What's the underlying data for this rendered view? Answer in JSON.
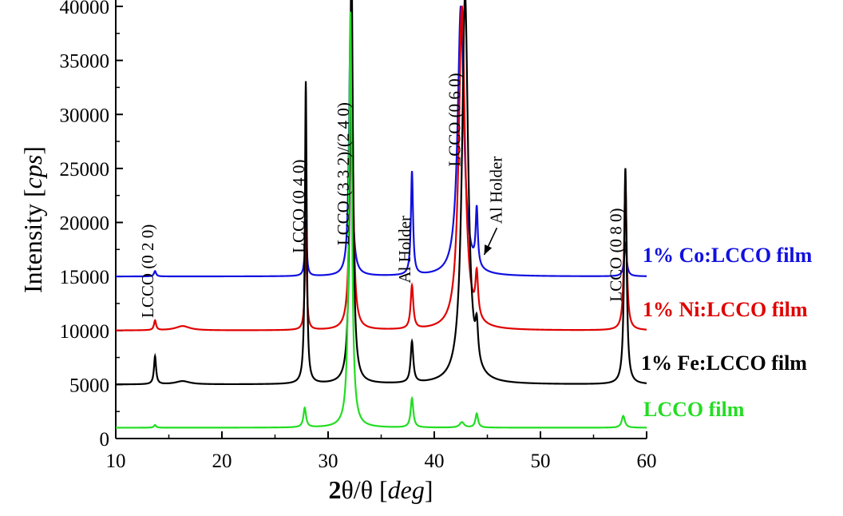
{
  "chart_data": {
    "type": "line",
    "title": "",
    "xlabel": {
      "bold": "2",
      "mid": "θ/θ [",
      "italic": "deg",
      "end": "]"
    },
    "ylabel": {
      "start": "Intensity [",
      "italic": "cps",
      "end": "]"
    },
    "xlim": [
      10,
      60
    ],
    "ylim": [
      0,
      40000
    ],
    "xticks": [
      "10",
      "20",
      "30",
      "40",
      "50",
      "60"
    ],
    "yticks": [
      "0",
      "5000",
      "10000",
      "15000",
      "20000",
      "25000",
      "30000",
      "35000",
      "40000"
    ],
    "grid": false,
    "series": [
      {
        "name": "LCCO film",
        "color": "#22dd22",
        "baseline": 1000,
        "peaks": [
          [
            13.7,
            250,
            0.12
          ],
          [
            27.8,
            1800,
            0.15
          ],
          [
            32.1,
            38500,
            0.16
          ],
          [
            37.9,
            2700,
            0.15
          ],
          [
            42.6,
            500,
            0.25
          ],
          [
            44.0,
            1300,
            0.15
          ],
          [
            57.8,
            1100,
            0.18
          ]
        ]
      },
      {
        "name": "1% Fe:LCCO film",
        "color": "#000000",
        "baseline": 5000,
        "peaks": [
          [
            13.7,
            2600,
            0.12
          ],
          [
            16.3,
            300,
            0.8
          ],
          [
            27.9,
            28000,
            0.1
          ],
          [
            32.2,
            40000,
            0.16
          ],
          [
            37.9,
            3800,
            0.15
          ],
          [
            42.9,
            36000,
            0.35
          ],
          [
            44.0,
            3200,
            0.15
          ],
          [
            58.0,
            20000,
            0.14
          ]
        ]
      },
      {
        "name": "1% Ni:LCCO film",
        "color": "#e00000",
        "baseline": 10000,
        "peaks": [
          [
            13.7,
            900,
            0.12
          ],
          [
            16.3,
            400,
            0.8
          ],
          [
            27.9,
            9500,
            0.1
          ],
          [
            32.2,
            30000,
            0.16
          ],
          [
            37.9,
            4000,
            0.15
          ],
          [
            42.6,
            30000,
            0.35
          ],
          [
            44.0,
            4000,
            0.15
          ],
          [
            58.0,
            14000,
            0.14
          ]
        ]
      },
      {
        "name": "1% Co:LCCO film",
        "color": "#1010e0",
        "baseline": 15000,
        "peaks": [
          [
            13.7,
            500,
            0.12
          ],
          [
            27.9,
            5200,
            0.1
          ],
          [
            32.1,
            22800,
            0.16
          ],
          [
            37.9,
            9600,
            0.12
          ],
          [
            42.5,
            25000,
            0.35
          ],
          [
            44.0,
            5300,
            0.12
          ],
          [
            58.0,
            3000,
            0.14
          ]
        ]
      }
    ],
    "annotations": [
      {
        "text": "LCCO (0 2 0)",
        "x": 13.7,
        "y": 15500
      },
      {
        "text": "LCCO (0 4 0)",
        "x": 27.9,
        "y": 21500
      },
      {
        "text": "LCCO (3 3 2)/(2 4 0)",
        "x": 32.1,
        "y": 24500
      },
      {
        "text": "Al Holder",
        "x": 37.9,
        "y": 17500
      },
      {
        "text": "LCCO (0 6 0)",
        "x": 42.6,
        "y": 29500
      },
      {
        "text": "Al Holder",
        "x": 46.5,
        "y": 23000
      },
      {
        "text": "LCCO (0 8 0)",
        "x": 57.8,
        "y": 17000
      }
    ],
    "arrow": {
      "from": [
        45.9,
        19500
      ],
      "to": [
        44.7,
        17000
      ]
    },
    "legend_placement": "right of each curve"
  }
}
